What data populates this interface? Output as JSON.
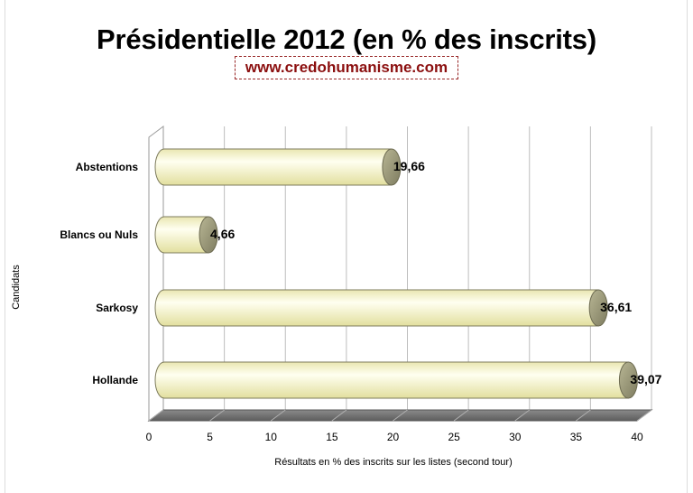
{
  "chart_data": {
    "type": "bar",
    "orientation": "horizontal",
    "title": "Présidentielle 2012 (en % des inscrits)",
    "subtitle": "www.credohumanisme.com",
    "xlabel": "Résultats en % des inscrits sur les listes (second tour)",
    "ylabel": "Candidats",
    "categories": [
      "Abstentions",
      "Blancs ou Nuls",
      "Sarkosy",
      "Hollande"
    ],
    "values": [
      19.66,
      4.66,
      36.61,
      39.07
    ],
    "data_labels": [
      "19,66",
      "4,66",
      "36,61",
      "39,07"
    ],
    "xlim": [
      0,
      40
    ],
    "xticks": [
      "0",
      "5",
      "10",
      "15",
      "20",
      "25",
      "30",
      "35",
      "40"
    ],
    "grid": true,
    "colors": {
      "bar": "#f6f4c8",
      "bar_cap": "#9a9878",
      "floor": "#7a7a7a"
    }
  }
}
